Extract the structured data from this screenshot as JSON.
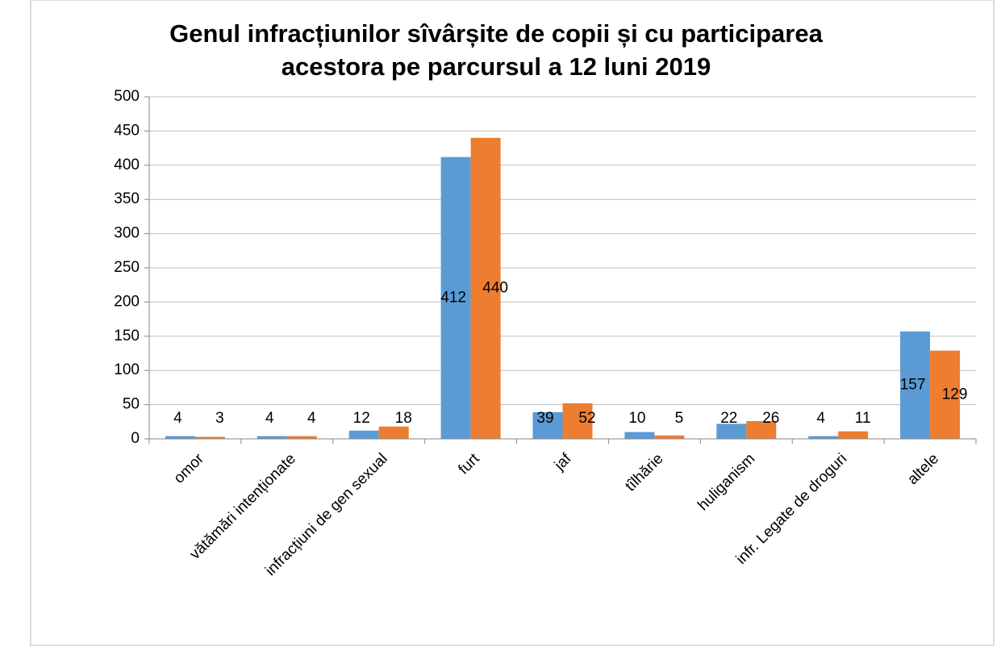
{
  "chart_data": {
    "type": "bar",
    "title": [
      "Genul infracțiunilor sîvârșite de copii și cu participarea",
      "acestora  pe parcursul a 12  luni 2019"
    ],
    "categories": [
      "omor",
      "vătămări intenționate",
      "infracțiuni de gen sexual",
      "furt",
      "jaf",
      "tîlhărie",
      "huliganism",
      "infr. Legate de droguri",
      "altele"
    ],
    "series": [
      {
        "color": "#5b9bd5",
        "values": [
          4,
          4,
          12,
          412,
          39,
          10,
          22,
          4,
          157
        ]
      },
      {
        "color": "#ed7d31",
        "values": [
          3,
          4,
          18,
          440,
          52,
          5,
          26,
          11,
          129
        ]
      }
    ],
    "ylim": [
      0,
      500
    ],
    "yticks": [
      0,
      50,
      100,
      150,
      200,
      250,
      300,
      350,
      400,
      450,
      500
    ],
    "grid": true
  }
}
